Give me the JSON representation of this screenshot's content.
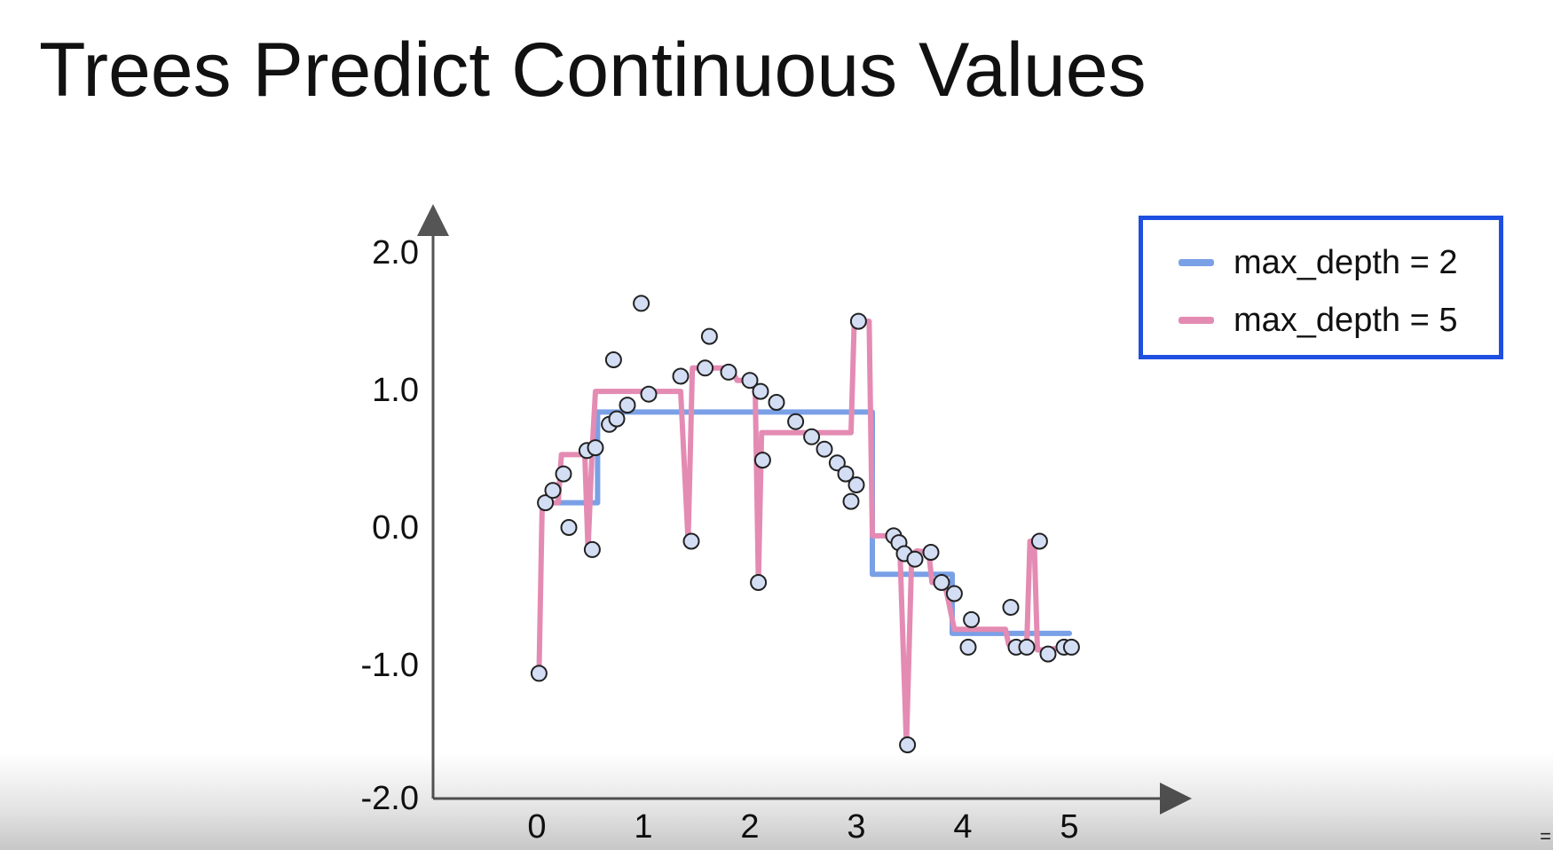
{
  "title": "Trees Predict Continuous Values",
  "corner_glyph": "=",
  "colors": {
    "depth2": "#7aa0e6",
    "depth5": "#e48bb3",
    "points_fill": "#d3def4",
    "points_stroke": "#222222",
    "axis": "#555555",
    "legend_border": "#1f4fe0"
  },
  "legend": {
    "entries": [
      {
        "label": "max_depth = 2",
        "color": "#7aa0e6"
      },
      {
        "label": "max_depth = 5",
        "color": "#e48bb3"
      }
    ]
  },
  "chart_data": {
    "type": "scatter",
    "title": "",
    "xlabel": "",
    "ylabel": "",
    "grid": false,
    "legend_position": "top-right",
    "xlim": [
      -0.9,
      6.1
    ],
    "ylim": [
      -2.0,
      2.0
    ],
    "x_ticks": [
      0,
      1,
      2,
      3,
      4,
      5
    ],
    "x_tick_labels": [
      "0",
      "1",
      "2",
      "3",
      "4",
      "5"
    ],
    "y_ticks": [
      2.0,
      1.0,
      0.0,
      -1.0,
      -2.0
    ],
    "y_tick_labels": [
      "2.0",
      "1.0",
      "0.0",
      "-1.0",
      "-2.0"
    ],
    "points": [
      [
        0.02,
        -1.07
      ],
      [
        0.08,
        0.17
      ],
      [
        0.15,
        0.26
      ],
      [
        0.25,
        0.38
      ],
      [
        0.3,
        -0.01
      ],
      [
        0.47,
        0.55
      ],
      [
        0.52,
        -0.17
      ],
      [
        0.55,
        0.57
      ],
      [
        0.68,
        0.74
      ],
      [
        0.72,
        1.21
      ],
      [
        0.75,
        0.78
      ],
      [
        0.85,
        0.88
      ],
      [
        0.98,
        1.62
      ],
      [
        1.05,
        0.96
      ],
      [
        1.35,
        1.09
      ],
      [
        1.45,
        -0.11
      ],
      [
        1.58,
        1.15
      ],
      [
        1.62,
        1.38
      ],
      [
        1.8,
        1.12
      ],
      [
        2.0,
        1.06
      ],
      [
        2.08,
        -0.41
      ],
      [
        2.1,
        0.98
      ],
      [
        2.12,
        0.48
      ],
      [
        2.25,
        0.9
      ],
      [
        2.43,
        0.76
      ],
      [
        2.58,
        0.65
      ],
      [
        2.7,
        0.56
      ],
      [
        2.82,
        0.46
      ],
      [
        2.9,
        0.38
      ],
      [
        2.95,
        0.18
      ],
      [
        3.0,
        0.3
      ],
      [
        3.02,
        1.49
      ],
      [
        3.35,
        -0.07
      ],
      [
        3.4,
        -0.12
      ],
      [
        3.45,
        -0.2
      ],
      [
        3.48,
        -1.59
      ],
      [
        3.55,
        -0.24
      ],
      [
        3.7,
        -0.19
      ],
      [
        3.8,
        -0.41
      ],
      [
        3.92,
        -0.49
      ],
      [
        4.05,
        -0.88
      ],
      [
        4.08,
        -0.68
      ],
      [
        4.45,
        -0.59
      ],
      [
        4.5,
        -0.88
      ],
      [
        4.6,
        -0.88
      ],
      [
        4.72,
        -0.11
      ],
      [
        4.8,
        -0.93
      ],
      [
        4.95,
        -0.88
      ],
      [
        5.02,
        -0.88
      ]
    ],
    "series": [
      {
        "name": "max_depth = 2",
        "drawstyle": "steps",
        "x": [
          0.05,
          0.57,
          0.57,
          3.15,
          3.15,
          3.9,
          3.9,
          5.0
        ],
        "y": [
          0.17,
          0.17,
          0.83,
          0.83,
          -0.35,
          -0.35,
          -0.78,
          -0.78
        ]
      },
      {
        "name": "max_depth = 5",
        "drawstyle": "line",
        "x": [
          0.02,
          0.05,
          0.2,
          0.23,
          0.45,
          0.48,
          0.52,
          0.55,
          1.35,
          1.42,
          1.46,
          1.5,
          1.82,
          1.88,
          1.97,
          2.05,
          2.08,
          2.11,
          2.95,
          2.98,
          3.02,
          3.12,
          3.15,
          3.35,
          3.38,
          3.41,
          3.47,
          3.52,
          3.57,
          3.68,
          3.71,
          3.82,
          3.85,
          3.92,
          4.4,
          4.43,
          4.6,
          4.63,
          4.67,
          4.7,
          4.73,
          5.02
        ],
        "y": [
          -1.07,
          0.17,
          0.17,
          0.52,
          0.52,
          -0.17,
          0.57,
          0.98,
          0.98,
          -0.11,
          1.15,
          1.15,
          1.15,
          1.06,
          1.06,
          1.0,
          -0.41,
          0.68,
          0.68,
          1.49,
          1.49,
          1.49,
          -0.07,
          -0.07,
          -0.12,
          -0.2,
          -1.59,
          -0.2,
          -0.18,
          -0.19,
          -0.41,
          -0.41,
          -0.49,
          -0.75,
          -0.75,
          -0.86,
          -0.86,
          -0.11,
          -0.11,
          -0.9,
          -0.9,
          -0.88
        ]
      }
    ]
  }
}
